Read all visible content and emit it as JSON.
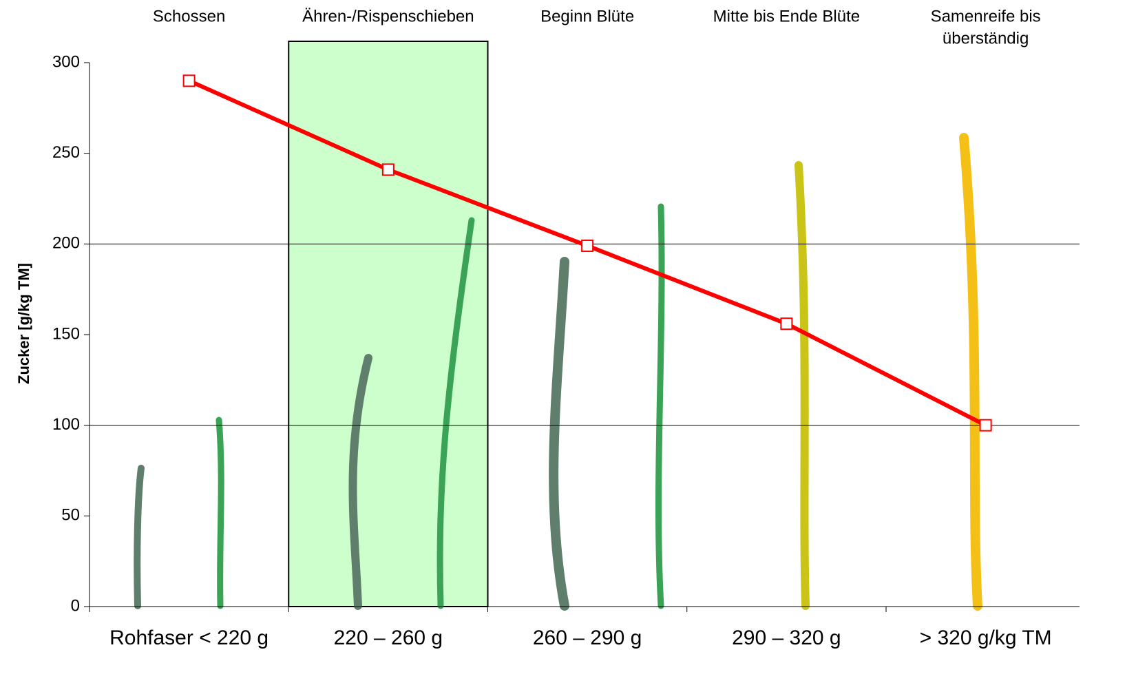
{
  "chart_data": {
    "type": "line",
    "y_label": "Zucker [g/kg TM]",
    "stages": [
      "Schossen",
      "Ähren-/Rispenschieben",
      "Beginn Blüte",
      "Mitte bis Ende Blüte",
      [
        "Samenreife bis",
        "überständig"
      ]
    ],
    "categories": [
      "Rohfaser < 220 g",
      "220 – 260 g",
      "260 – 290 g",
      "290 – 320 g",
      "> 320 g/kg TM"
    ],
    "values": [
      290,
      241,
      199,
      156,
      100
    ],
    "color": "#ff0000",
    "marker_fill": "#ffffff",
    "ylim": [
      0,
      300
    ],
    "yticks": [
      0,
      50,
      100,
      150,
      200,
      250,
      300
    ],
    "gridlines": [
      100,
      200
    ],
    "highlight_index": 1,
    "highlight_color": "#ccffcc"
  }
}
